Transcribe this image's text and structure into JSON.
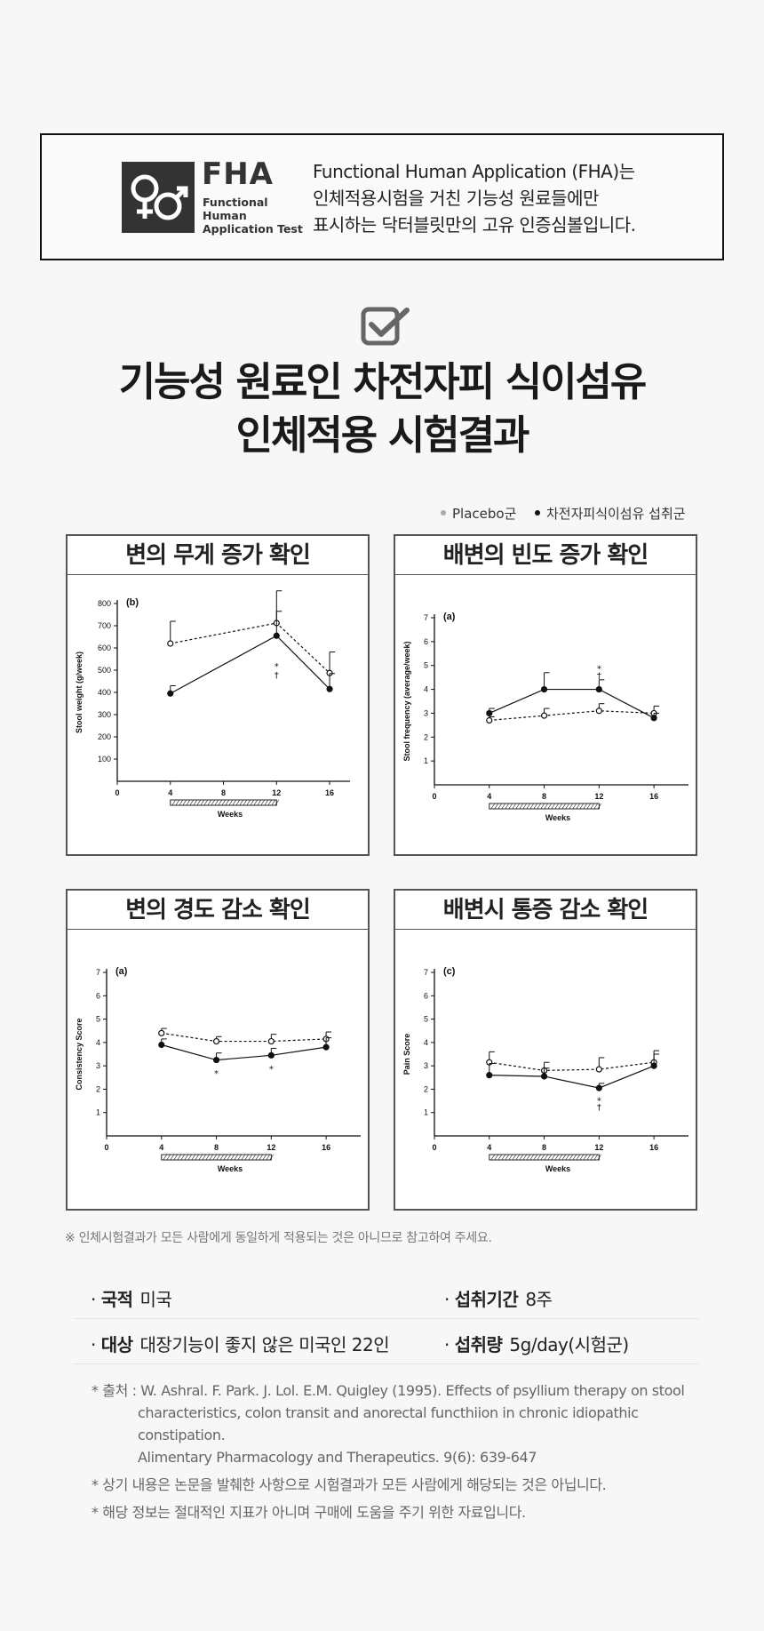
{
  "fha": {
    "logo_word": "FHA",
    "logo_sub": [
      "Functional",
      "Human",
      "Application Test"
    ],
    "desc_lines": [
      "Functional Human Application (FHA)는",
      "인체적용시험을 거친 기능성 원료들에만",
      "표시하는 닥터블릿만의 고유 인증심볼입니다."
    ]
  },
  "main_title": [
    "기능성 원료인 차전자피 식이섬유",
    "인체적용 시험결과"
  ],
  "legend": {
    "placebo": "Placebo군",
    "treatment": "차전자피식이섬유 섭취군"
  },
  "colors": {
    "open_series": "#ffffff",
    "filled_series": "#111111",
    "border": "#555555"
  },
  "chart_data": [
    {
      "type": "line",
      "panel_title": "변의 무게 증가 확인",
      "label": "(b)",
      "ylabel": "Stool weight (g/week)",
      "xlabel": "Weeks",
      "x": [
        4,
        8,
        12,
        16
      ],
      "xticks": [
        0,
        4,
        8,
        12,
        16
      ],
      "yticks": [
        100,
        200,
        300,
        400,
        500,
        600,
        700,
        800
      ],
      "ylim": [
        0,
        800
      ],
      "xlim": [
        0,
        17
      ],
      "intervention_bar": [
        4,
        12
      ],
      "series": [
        {
          "style": "open",
          "values": [
            620,
            null,
            712,
            487
          ],
          "err": [
            100,
            null,
            145,
            95
          ]
        },
        {
          "style": "filled",
          "values": [
            395,
            null,
            655,
            415
          ],
          "err": [
            35,
            null,
            110,
            70
          ]
        }
      ],
      "markers": [
        {
          "x": 12,
          "y": 520,
          "text": "*"
        },
        {
          "x": 12,
          "y": 480,
          "text": "†"
        }
      ]
    },
    {
      "type": "line",
      "panel_title": "배변의 빈도 증가 확인",
      "label": "(a)",
      "ylabel": "Stool frequency (average/week)",
      "xlabel": "Weeks",
      "x": [
        4,
        8,
        12,
        16
      ],
      "xticks": [
        0,
        4,
        8,
        12,
        16
      ],
      "yticks": [
        1,
        2,
        3,
        4,
        5,
        6,
        7
      ],
      "ylim": [
        0,
        7
      ],
      "xlim": [
        0,
        18
      ],
      "intervention_bar": [
        4,
        12
      ],
      "series": [
        {
          "style": "open",
          "values": [
            2.7,
            2.9,
            3.1,
            3.0
          ],
          "err": [
            0.15,
            0.3,
            0.3,
            0.3
          ]
        },
        {
          "style": "filled",
          "values": [
            3.0,
            4.0,
            4.0,
            2.8
          ],
          "err": [
            0.2,
            0.7,
            0.4,
            0.2
          ]
        }
      ],
      "markers": [
        {
          "x": 12,
          "y": 4.9,
          "text": "*"
        },
        {
          "x": 12,
          "y": 4.6,
          "text": "†"
        }
      ]
    },
    {
      "type": "line",
      "panel_title": "변의 경도 감소 확인",
      "label": "(a)",
      "ylabel": "Consistency Score",
      "xlabel": "Weeks",
      "x": [
        4,
        8,
        12,
        16
      ],
      "xticks": [
        0,
        4,
        8,
        12,
        16
      ],
      "yticks": [
        1,
        2,
        3,
        4,
        5,
        6,
        7
      ],
      "ylim": [
        0,
        7
      ],
      "xlim": [
        0,
        18
      ],
      "intervention_bar": [
        4,
        12
      ],
      "series": [
        {
          "style": "open",
          "values": [
            4.4,
            4.05,
            4.05,
            4.15
          ],
          "err": [
            0.2,
            0.2,
            0.3,
            0.3
          ]
        },
        {
          "style": "filled",
          "values": [
            3.9,
            3.25,
            3.45,
            3.8
          ],
          "err": [
            0.25,
            0.3,
            0.3,
            0.4
          ]
        }
      ],
      "markers": [
        {
          "x": 8,
          "y": 2.7,
          "text": "*"
        },
        {
          "x": 12,
          "y": 2.9,
          "text": "*"
        }
      ]
    },
    {
      "type": "line",
      "panel_title": "배변시 통증 감소 확인",
      "label": "(c)",
      "ylabel": "Pain Score",
      "xlabel": "Weeks",
      "x": [
        4,
        8,
        12,
        16
      ],
      "xticks": [
        0,
        4,
        8,
        12,
        16
      ],
      "yticks": [
        1,
        2,
        3,
        4,
        5,
        6,
        7
      ],
      "ylim": [
        0,
        7
      ],
      "xlim": [
        0,
        18
      ],
      "intervention_bar": [
        4,
        12
      ],
      "series": [
        {
          "style": "open",
          "values": [
            3.15,
            2.8,
            2.85,
            3.15
          ],
          "err": [
            0.45,
            0.35,
            0.5,
            0.5
          ]
        },
        {
          "style": "filled",
          "values": [
            2.6,
            2.55,
            2.05,
            3.0
          ],
          "err": [
            0.5,
            0.35,
            0.2,
            0.5
          ]
        }
      ],
      "markers": [
        {
          "x": 12,
          "y": 1.55,
          "text": "*"
        },
        {
          "x": 12,
          "y": 1.25,
          "text": "†"
        }
      ]
    }
  ],
  "note": "※ 인체시험결과가 모든 사람에게 동일하게 적용되는 것은 아니므로 참고하여 주세요.",
  "info": {
    "country_label": "국적",
    "country": "미국",
    "period_label": "섭취기간",
    "period": "8주",
    "subject_label": "대상",
    "subject": "대장기능이 좋지 않은 미국인 22인",
    "dose_label": "섭취량",
    "dose": "5g/day(시험군)"
  },
  "refs": {
    "source_lines": [
      "* 출처 : W. Ashral. F. Park. J. Lol. E.M. Quigley (1995). Effects of psyllium therapy on stool",
      "characteristics, colon transit and anorectal functhiion in chronic idiopathic constipation.",
      "Alimentary Pharmacology and Therapeutics. 9(6): 639-647"
    ],
    "disclaimer1": "* 상기 내용은 논문을 발췌한 사항으로 시험결과가 모든 사람에게 해당되는 것은 아닙니다.",
    "disclaimer2": "* 해당 정보는 절대적인 지표가 아니며 구매에 도움을 주기 위한 자료입니다."
  }
}
